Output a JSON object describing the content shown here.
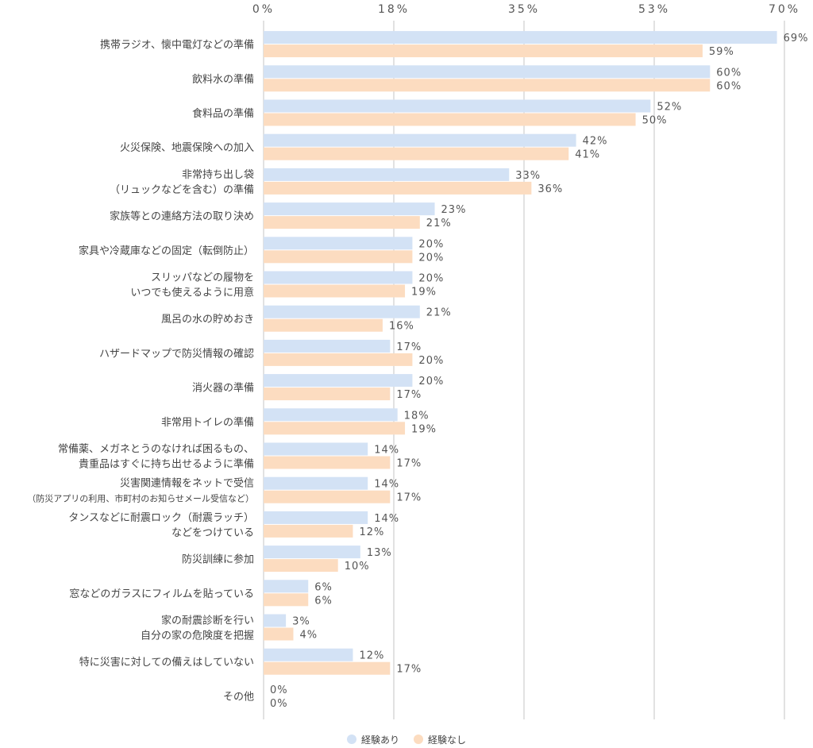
{
  "chart_data": {
    "type": "bar",
    "orientation": "horizontal",
    "categories": [
      [
        "携帯ラジオ、懐中電灯などの準備"
      ],
      [
        "飲料水の準備"
      ],
      [
        "食料品の準備"
      ],
      [
        "火災保険、地震保険への加入"
      ],
      [
        "非常持ち出し袋",
        "（リュックなどを含む）の準備"
      ],
      [
        "家族等との連絡方法の取り決め"
      ],
      [
        "家具や冷蔵庫などの固定（転倒防止）"
      ],
      [
        "スリッパなどの履物を",
        "いつでも使えるように用意"
      ],
      [
        "風呂の水の貯めおき"
      ],
      [
        "ハザードマップで防災情報の確認"
      ],
      [
        "消火器の準備"
      ],
      [
        "非常用トイレの準備"
      ],
      [
        "常備薬、メガネとうのなければ困るもの、",
        "貴重品はすぐに持ち出せるように準備"
      ],
      [
        "災害関連情報をネットで受信",
        "（防災アプリの利用、市町村のお知らせメール受信など）"
      ],
      [
        "タンスなどに耐震ロック（耐震ラッチ）",
        "などをつけている"
      ],
      [
        "防災訓練に参加"
      ],
      [
        "窓などのガラスにフィルムを貼っている"
      ],
      [
        "家の耐震診断を行い",
        "自分の家の危険度を把握"
      ],
      [
        "特に災害に対しての備えはしていない"
      ],
      [
        "その他"
      ]
    ],
    "series": [
      {
        "name": "経験あり",
        "color": "#d3e2f5",
        "values": [
          69,
          60,
          52,
          42,
          33,
          23,
          20,
          20,
          21,
          17,
          20,
          18,
          14,
          14,
          14,
          13,
          6,
          3,
          12,
          0
        ],
        "labels": [
          "69%",
          "60%",
          "52%",
          "42%",
          "33%",
          "23%",
          "20%",
          "20%",
          "21%",
          "17%",
          "20%",
          "18%",
          "14%",
          "14%",
          "14%",
          "13%",
          "6%",
          "3%",
          "12%",
          "0%"
        ]
      },
      {
        "name": "経験なし",
        "color": "#fcdcc0",
        "values": [
          59,
          60,
          50,
          41,
          36,
          21,
          20,
          19,
          16,
          20,
          17,
          19,
          17,
          17,
          12,
          10,
          6,
          4,
          17,
          0
        ],
        "labels": [
          "59%",
          "60%",
          "50%",
          "41%",
          "36%",
          "21%",
          "20%",
          "19%",
          "16%",
          "20%",
          "17%",
          "19%",
          "17%",
          "17%",
          "12%",
          "10%",
          "6%",
          "4%",
          "17%",
          "0%"
        ]
      }
    ],
    "xlim": [
      0,
      70
    ],
    "xticks": [
      0,
      17.5,
      35,
      52.5,
      70
    ],
    "xtick_labels": [
      "0%",
      "18%",
      "35%",
      "53%",
      "70%"
    ],
    "grid": true,
    "legend_position": "bottom-center"
  },
  "legend": {
    "items": [
      "経験あり",
      "経験なし"
    ]
  }
}
